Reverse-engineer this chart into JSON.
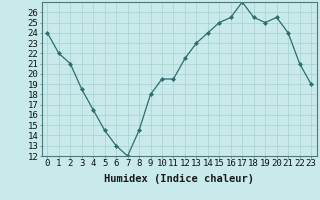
{
  "xlabel": "Humidex (Indice chaleur)",
  "x": [
    0,
    1,
    2,
    3,
    4,
    5,
    6,
    7,
    8,
    9,
    10,
    11,
    12,
    13,
    14,
    15,
    16,
    17,
    18,
    19,
    20,
    21,
    22,
    23
  ],
  "y": [
    24,
    22,
    21,
    18.5,
    16.5,
    14.5,
    13,
    12,
    14.5,
    18,
    19.5,
    19.5,
    21.5,
    23,
    24,
    25,
    25.5,
    27,
    25.5,
    25,
    25.5,
    24,
    21,
    19
  ],
  "line_color": "#2d6e6e",
  "marker": "D",
  "marker_size": 2.0,
  "bg_color": "#c8eaea",
  "grid_color": "#a8d0d0",
  "ylim": [
    12,
    27
  ],
  "yticks": [
    12,
    13,
    14,
    15,
    16,
    17,
    18,
    19,
    20,
    21,
    22,
    23,
    24,
    25,
    26
  ],
  "xticks": [
    0,
    1,
    2,
    3,
    4,
    5,
    6,
    7,
    8,
    9,
    10,
    11,
    12,
    13,
    14,
    15,
    16,
    17,
    18,
    19,
    20,
    21,
    22,
    23
  ],
  "label_fontsize": 7.5,
  "tick_fontsize": 6.5
}
